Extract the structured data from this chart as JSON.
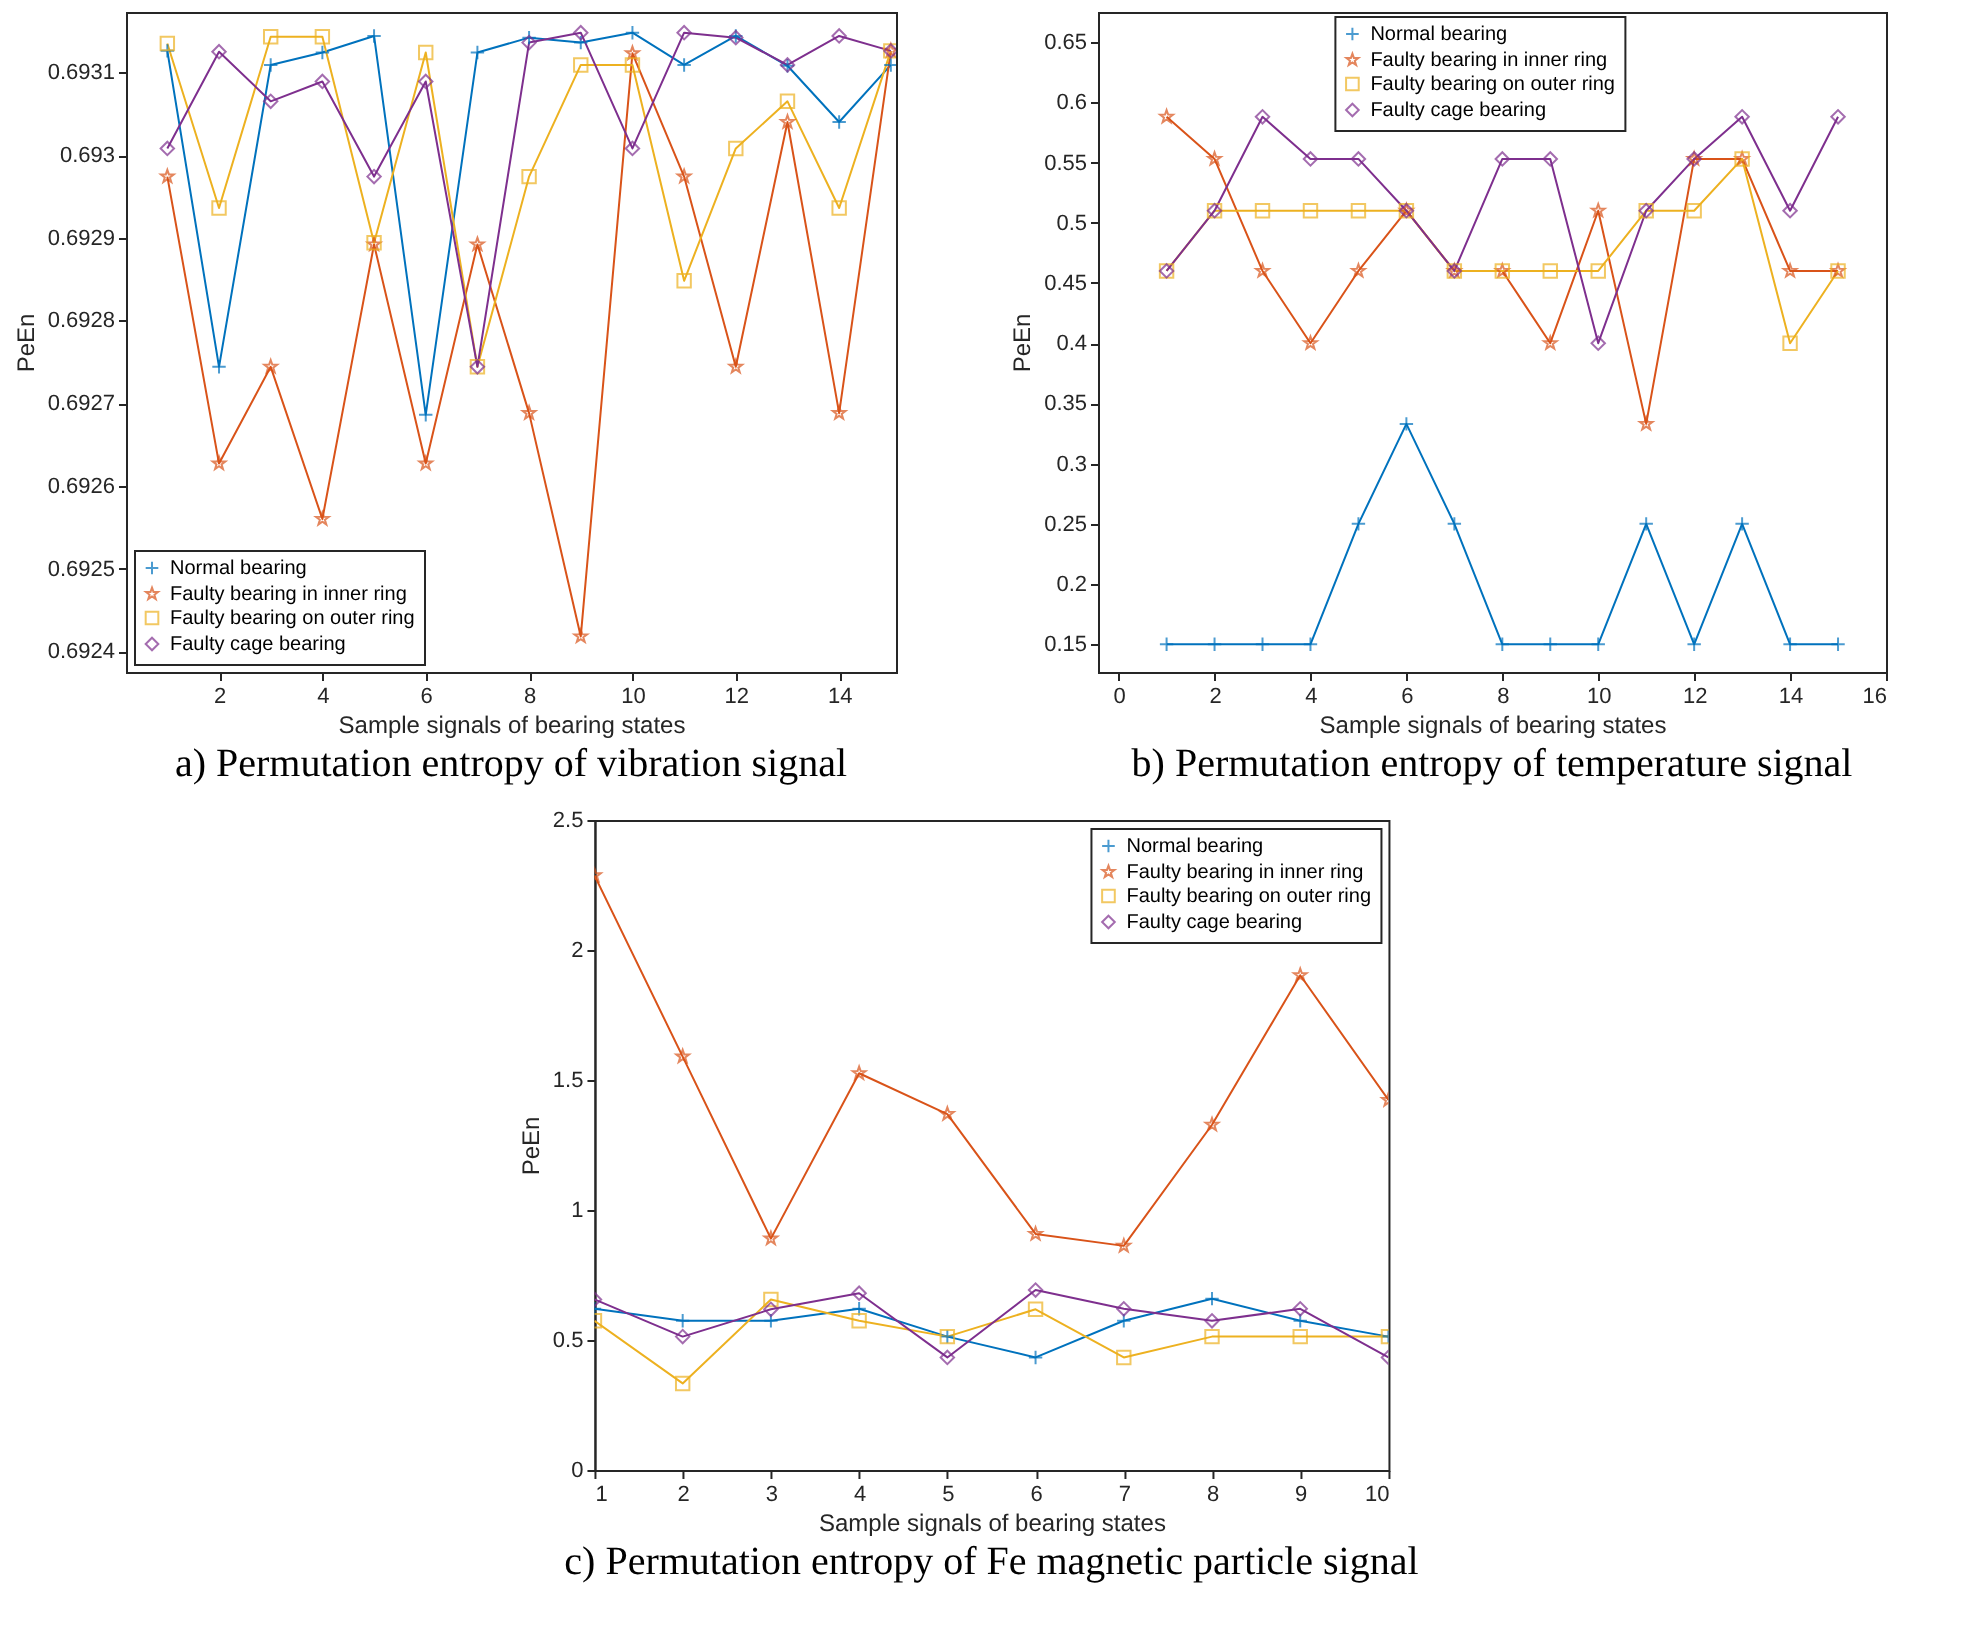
{
  "chart_data": [
    {
      "type": "line",
      "title": "a) Permutation entropy of vibration signal",
      "xlabel": "Sample signals of bearing states",
      "ylabel": "PeEn",
      "x": [
        1,
        2,
        3,
        4,
        5,
        6,
        7,
        8,
        9,
        10,
        11,
        12,
        13,
        14,
        15
      ],
      "xlim": [
        0.2,
        15.1
      ],
      "xticks": [
        2,
        4,
        6,
        8,
        10,
        12,
        14
      ],
      "ylim": [
        0.692375,
        0.693173
      ],
      "yticks": [
        0.6924,
        0.6925,
        0.6926,
        0.6927,
        0.6928,
        0.6929,
        0.693,
        0.6931
      ],
      "legend": "bottom left",
      "series": [
        {
          "name": "Normal bearing",
          "color": "#0072bd",
          "marker": "cross",
          "values": [
            0.693126,
            0.692744,
            0.693109,
            0.693124,
            0.693144,
            0.692686,
            0.693124,
            0.693142,
            0.693136,
            0.693148,
            0.693109,
            0.693144,
            0.693108,
            0.69304,
            0.693109
          ]
        },
        {
          "name": "Faulty bearing in inner ring",
          "color": "#d95319",
          "marker": "star",
          "values": [
            0.692974,
            0.692627,
            0.692744,
            0.69256,
            0.692892,
            0.692627,
            0.692892,
            0.692688,
            0.692418,
            0.693123,
            0.692974,
            0.692744,
            0.69304,
            0.692688,
            0.693126
          ]
        },
        {
          "name": "Faulty bearing on outer ring",
          "color": "#edb120",
          "marker": "square",
          "values": [
            0.693135,
            0.692936,
            0.693143,
            0.693143,
            0.692894,
            0.693124,
            0.692744,
            0.692974,
            0.693109,
            0.693109,
            0.692848,
            0.693008,
            0.693065,
            0.692936,
            0.693126
          ]
        },
        {
          "name": "Faulty cage bearing",
          "color": "#7e2f8e",
          "marker": "diamond",
          "values": [
            0.693008,
            0.693125,
            0.693065,
            0.693089,
            0.692974,
            0.693089,
            0.692744,
            0.693136,
            0.693148,
            0.693008,
            0.693148,
            0.693142,
            0.693109,
            0.693144,
            0.693126
          ]
        }
      ]
    },
    {
      "type": "line",
      "title": "b) Permutation entropy of temperature signal",
      "xlabel": "Sample signals of bearing states",
      "ylabel": "PeEn",
      "x": [
        1,
        2,
        3,
        4,
        5,
        6,
        7,
        8,
        9,
        10,
        11,
        12,
        13,
        14,
        15
      ],
      "xlim": [
        -0.43,
        16
      ],
      "xticks": [
        0,
        2,
        4,
        6,
        8,
        10,
        12,
        14,
        16
      ],
      "ylim": [
        0.127,
        0.675
      ],
      "yticks": [
        0.15,
        0.2,
        0.25,
        0.3,
        0.35,
        0.4,
        0.45,
        0.5,
        0.55,
        0.6,
        0.65
      ],
      "legend": "top",
      "series": [
        {
          "name": "Normal bearing",
          "color": "#0072bd",
          "marker": "cross",
          "values": [
            0.15,
            0.15,
            0.15,
            0.15,
            0.25,
            0.333,
            0.25,
            0.15,
            0.15,
            0.15,
            0.25,
            0.15,
            0.25,
            0.15,
            0.15
          ]
        },
        {
          "name": "Faulty bearing in inner ring",
          "color": "#d95319",
          "marker": "star",
          "values": [
            0.588,
            0.553,
            0.46,
            0.4,
            0.46,
            0.51,
            0.46,
            0.46,
            0.4,
            0.51,
            0.333,
            0.553,
            0.553,
            0.46,
            0.46
          ]
        },
        {
          "name": "Faulty bearing on outer ring",
          "color": "#edb120",
          "marker": "square",
          "values": [
            0.46,
            0.51,
            0.51,
            0.51,
            0.51,
            0.51,
            0.46,
            0.46,
            0.46,
            0.46,
            0.51,
            0.51,
            0.553,
            0.4,
            0.46
          ]
        },
        {
          "name": "Faulty cage bearing",
          "color": "#7e2f8e",
          "marker": "diamond",
          "values": [
            0.46,
            0.51,
            0.588,
            0.553,
            0.553,
            0.51,
            0.46,
            0.553,
            0.553,
            0.4,
            0.51,
            0.553,
            0.588,
            0.51,
            0.588
          ]
        }
      ]
    },
    {
      "type": "line",
      "title": "c) Permutation entropy of Fe magnetic particle signal",
      "xlabel": "Sample signals of bearing states",
      "ylabel": "PeEn",
      "x": [
        1,
        2,
        3,
        4,
        5,
        6,
        7,
        8,
        9,
        10
      ],
      "xlim": [
        1,
        10
      ],
      "xticks": [
        1,
        2,
        3,
        4,
        5,
        6,
        7,
        8,
        9,
        10
      ],
      "ylim": [
        0,
        2.5
      ],
      "yticks": [
        0,
        0.5,
        1,
        1.5,
        2,
        2.5
      ],
      "legend": "top right",
      "series": [
        {
          "name": "Normal bearing",
          "color": "#0072bd",
          "marker": "cross",
          "values": [
            0.62,
            0.574,
            0.574,
            0.62,
            0.513,
            0.433,
            0.574,
            0.659,
            0.574,
            0.513
          ]
        },
        {
          "name": "Faulty bearing in inner ring",
          "color": "#d95319",
          "marker": "star",
          "values": [
            2.287,
            1.59,
            0.89,
            1.526,
            1.369,
            0.908,
            0.862,
            1.328,
            1.903,
            1.423
          ]
        },
        {
          "name": "Faulty bearing on outer ring",
          "color": "#edb120",
          "marker": "square",
          "values": [
            0.574,
            0.333,
            0.656,
            0.574,
            0.513,
            0.618,
            0.433,
            0.513,
            0.513,
            0.513
          ]
        },
        {
          "name": "Faulty cage bearing",
          "color": "#7e2f8e",
          "marker": "diamond",
          "values": [
            0.656,
            0.513,
            0.618,
            0.68,
            0.433,
            0.692,
            0.62,
            0.574,
            0.62,
            0.433
          ]
        }
      ]
    }
  ]
}
